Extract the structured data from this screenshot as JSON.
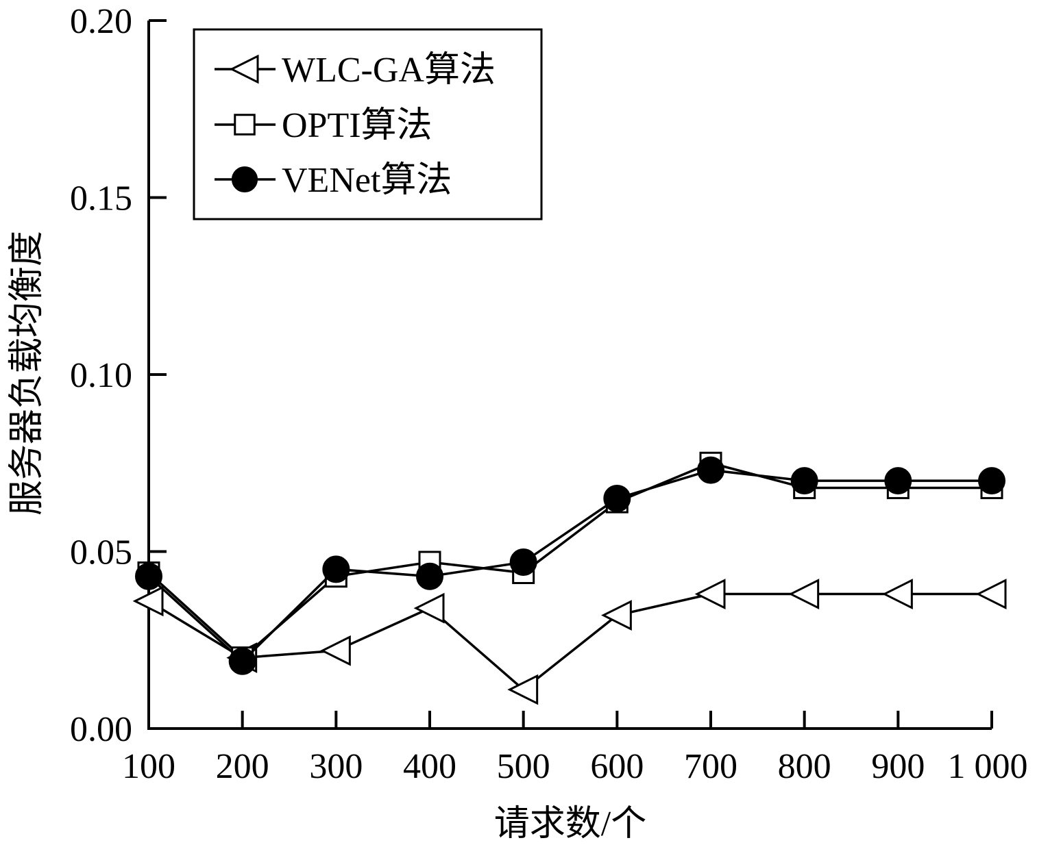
{
  "chart_data": {
    "type": "line",
    "title": "",
    "xlabel": "请求数/个",
    "ylabel": "服务器负载均衡度",
    "categories": [
      "100",
      "200",
      "300",
      "400",
      "500",
      "600",
      "700",
      "800",
      "900",
      "1 000"
    ],
    "x": [
      100,
      200,
      300,
      400,
      500,
      600,
      700,
      800,
      900,
      1000
    ],
    "ylim": [
      0,
      0.2
    ],
    "yticks": [
      "0.00",
      "0.05",
      "0.10",
      "0.15",
      "0.20"
    ],
    "ytick_values": [
      0,
      0.05,
      0.1,
      0.15,
      0.2
    ],
    "grid": false,
    "legend_position": "top-left",
    "series": [
      {
        "name": "WLC-GA算法",
        "marker": "triangle-left-open",
        "values": [
          0.036,
          0.02,
          0.022,
          0.034,
          0.011,
          0.032,
          0.038,
          0.038,
          0.038,
          0.038
        ]
      },
      {
        "name": "OPTI算法",
        "marker": "square-open",
        "values": [
          0.044,
          0.02,
          0.043,
          0.047,
          0.044,
          0.064,
          0.075,
          0.068,
          0.068,
          0.068
        ]
      },
      {
        "name": "VENet算法",
        "marker": "circle-filled",
        "values": [
          0.043,
          0.019,
          0.045,
          0.043,
          0.047,
          0.065,
          0.073,
          0.07,
          0.07,
          0.07
        ]
      }
    ]
  }
}
